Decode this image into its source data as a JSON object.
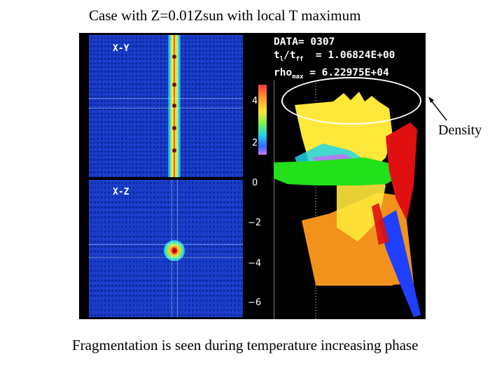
{
  "title": "Case with Z=0.01Zsun with local T maximum",
  "caption": "Fragmentation is seen during temperature increasing phase",
  "annotation": "Density",
  "figure": {
    "panel_xy_label": "X-Y",
    "panel_xz_label": "X-Z",
    "info_line1": "DATA= 0307",
    "info_line2_prefix": "t",
    "info_line2_sub1": "l",
    "info_line2_mid": "/t",
    "info_line2_sub2": "ff",
    "info_line2_value": "  = 1.06824E+00",
    "info_line3_prefix": "rho",
    "info_line3_sub": "max",
    "info_line3_value": " = 6.22975E+04",
    "y_ticks": [
      "4",
      "2",
      "0",
      "−2",
      "−4",
      "−6"
    ]
  },
  "colors": {
    "background": "#ffffff",
    "figure_bg": "#000000",
    "panel_blue": "#1a3cc8",
    "yellow": "#ffe83a",
    "orange": "#ff9a1e",
    "red": "#e01010",
    "green": "#22e01a",
    "cyan": "#22d6e8",
    "blue": "#1f3fff",
    "magenta": "#d060ff"
  }
}
